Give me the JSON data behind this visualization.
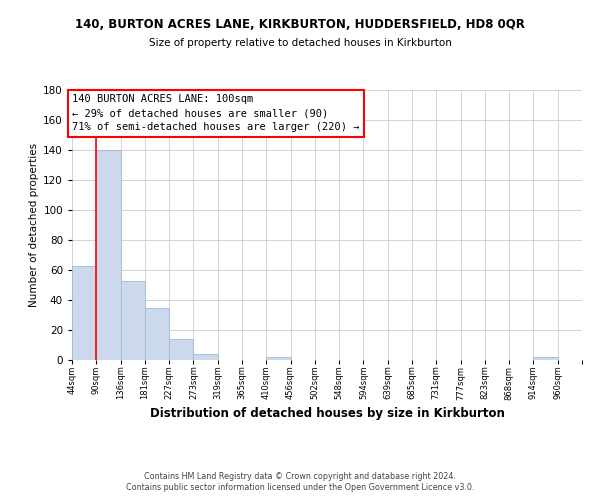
{
  "title": "140, BURTON ACRES LANE, KIRKBURTON, HUDDERSFIELD, HD8 0QR",
  "subtitle": "Size of property relative to detached houses in Kirkburton",
  "xlabel": "Distribution of detached houses by size in Kirkburton",
  "ylabel": "Number of detached properties",
  "bin_labels": [
    "44sqm",
    "90sqm",
    "136sqm",
    "181sqm",
    "227sqm",
    "273sqm",
    "319sqm",
    "365sqm",
    "410sqm",
    "456sqm",
    "502sqm",
    "548sqm",
    "594sqm",
    "639sqm",
    "685sqm",
    "731sqm",
    "777sqm",
    "823sqm",
    "868sqm",
    "914sqm",
    "960sqm"
  ],
  "bar_heights": [
    63,
    140,
    53,
    35,
    14,
    4,
    0,
    0,
    2,
    0,
    0,
    0,
    0,
    0,
    0,
    0,
    0,
    0,
    0,
    2,
    0
  ],
  "bar_color": "#ccd9ed",
  "bar_edge_color": "#a0b8d8",
  "annotation_title": "140 BURTON ACRES LANE: 100sqm",
  "annotation_line1": "← 29% of detached houses are smaller (90)",
  "annotation_line2": "71% of semi-detached houses are larger (220) →",
  "ylim": [
    0,
    180
  ],
  "yticks": [
    0,
    20,
    40,
    60,
    80,
    100,
    120,
    140,
    160,
    180
  ],
  "footnote1": "Contains HM Land Registry data © Crown copyright and database right 2024.",
  "footnote2": "Contains public sector information licensed under the Open Government Licence v3.0.",
  "background_color": "#ffffff",
  "grid_color": "#cccccc"
}
